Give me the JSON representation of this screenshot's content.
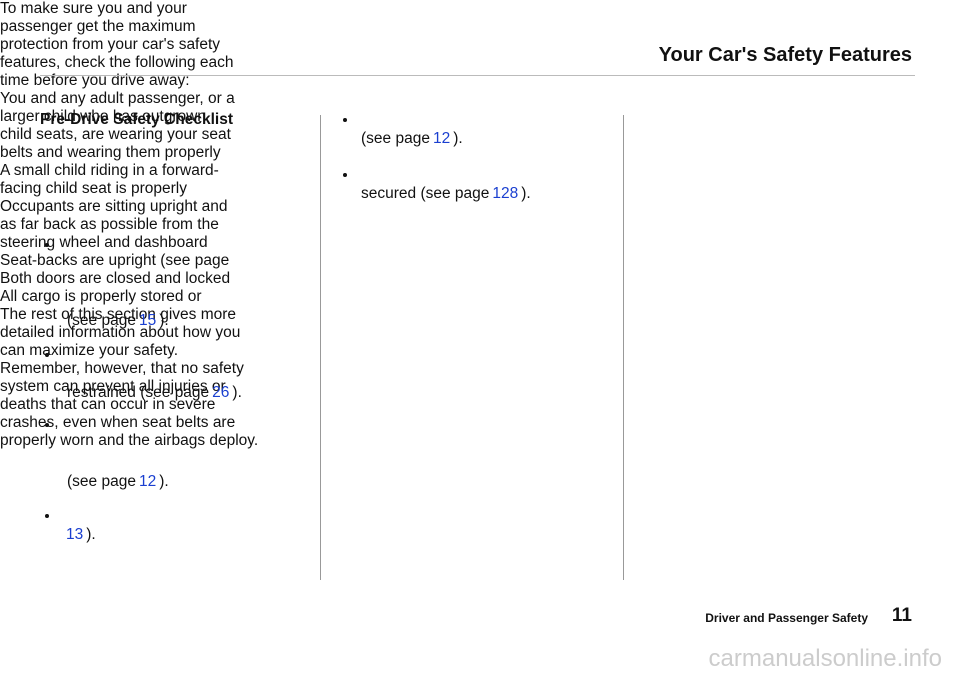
{
  "header": {
    "title": "Your Car's Safety Features"
  },
  "left": {
    "heading": "Pre-Drive Safety Checklist",
    "intro": [
      "To make sure you and your",
      "passenger get the maximum",
      "protection from your car's safety",
      "features, check the following each",
      "time before you drive away:"
    ],
    "items": [
      {
        "lines": [
          "You and any adult passenger, or a",
          "larger child who has outgrown",
          "child seats, are wearing your seat",
          "belts and wearing them properly"
        ],
        "ref": {
          "before": "(see page",
          "page": "15",
          "after": ")."
        }
      },
      {
        "lines": [
          "A small child riding in a forward-",
          "facing child seat is properly"
        ],
        "ref": {
          "before": "restrained (see page",
          "page": "26",
          "after": ")."
        }
      },
      {
        "lines": [
          "Occupants are sitting upright and",
          "as far back as possible from the",
          "steering wheel and dashboard"
        ],
        "ref": {
          "before": "(see page",
          "page": "12",
          "after": ")."
        }
      },
      {
        "lines": [
          "Seat-backs are upright (see page"
        ],
        "ref": {
          "page": "13",
          "after": ")."
        }
      }
    ]
  },
  "middle": {
    "items": [
      {
        "lines": [
          "Both doors are closed and locked"
        ],
        "ref": {
          "before": "(see page",
          "page": "12",
          "after": ")."
        }
      },
      {
        "lines": [
          "All cargo is properly stored or"
        ],
        "ref": {
          "before": "secured (see page",
          "page": "128",
          "after": ")."
        }
      }
    ],
    "paragraphs": [
      [
        "The rest of this section gives more",
        "detailed information about how you",
        "can maximize your safety."
      ],
      [
        "Remember, however, that no safety",
        "system can prevent all injuries or",
        "deaths that can occur in severe",
        "crashes, even when seat belts are",
        "properly worn and the airbags deploy."
      ]
    ]
  },
  "footer": {
    "section": "Driver and Passenger Safety",
    "page_number": "11"
  },
  "watermark": "carmanualsonline.info"
}
